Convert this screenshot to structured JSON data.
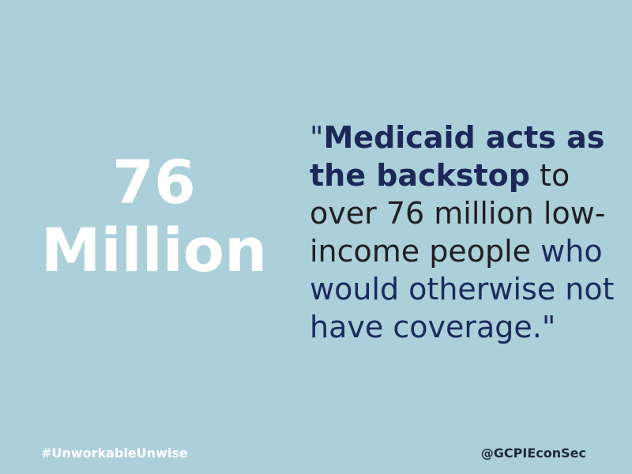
{
  "stat": "76 Million",
  "quote": {
    "segments": [
      "\"",
      "Medicaid acts as the backstop",
      "to over 76 million low-income people",
      "who would otherwise not have coverage.\""
    ]
  },
  "footer": {
    "hashtag": "#UnworkableUnwise",
    "handle": "@GCPIEconSec"
  }
}
